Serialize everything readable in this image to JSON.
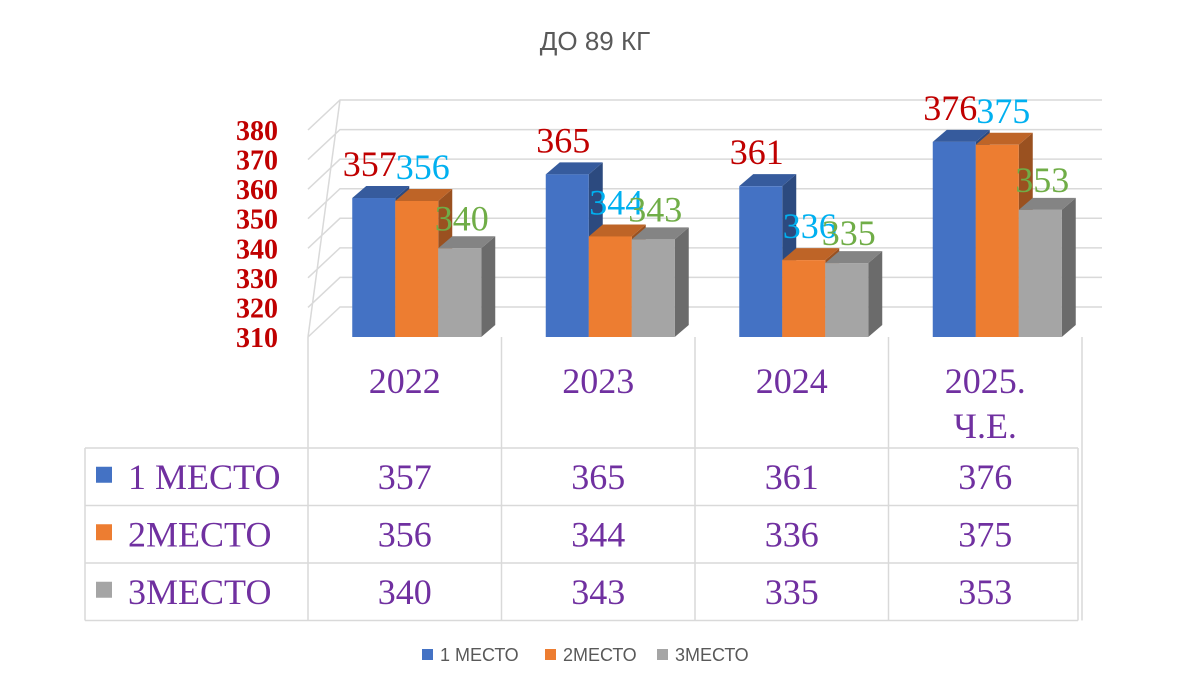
{
  "chart_data": {
    "type": "bar",
    "title": "ДО 89 КГ",
    "categories": [
      [
        "2022"
      ],
      [
        "2023"
      ],
      [
        "2024"
      ],
      [
        "2025.",
        "Ч.Е."
      ]
    ],
    "series": [
      {
        "name": "1 МЕСТО",
        "values": [
          357,
          365,
          361,
          376
        ],
        "color": "#4472c4",
        "label_color": "#c00000"
      },
      {
        "name": "2МЕСТО",
        "values": [
          356,
          344,
          336,
          375
        ],
        "color": "#ed7d31",
        "label_color": "#00b0f0"
      },
      {
        "name": "3МЕСТО",
        "values": [
          340,
          343,
          335,
          353
        ],
        "color": "#a5a5a5",
        "label_color": "#70ad47"
      }
    ],
    "ylim": [
      310,
      380
    ],
    "yticks": [
      310,
      320,
      330,
      340,
      350,
      360,
      370,
      380
    ],
    "grid": true,
    "data_table": true,
    "legend_position": "bottom"
  }
}
